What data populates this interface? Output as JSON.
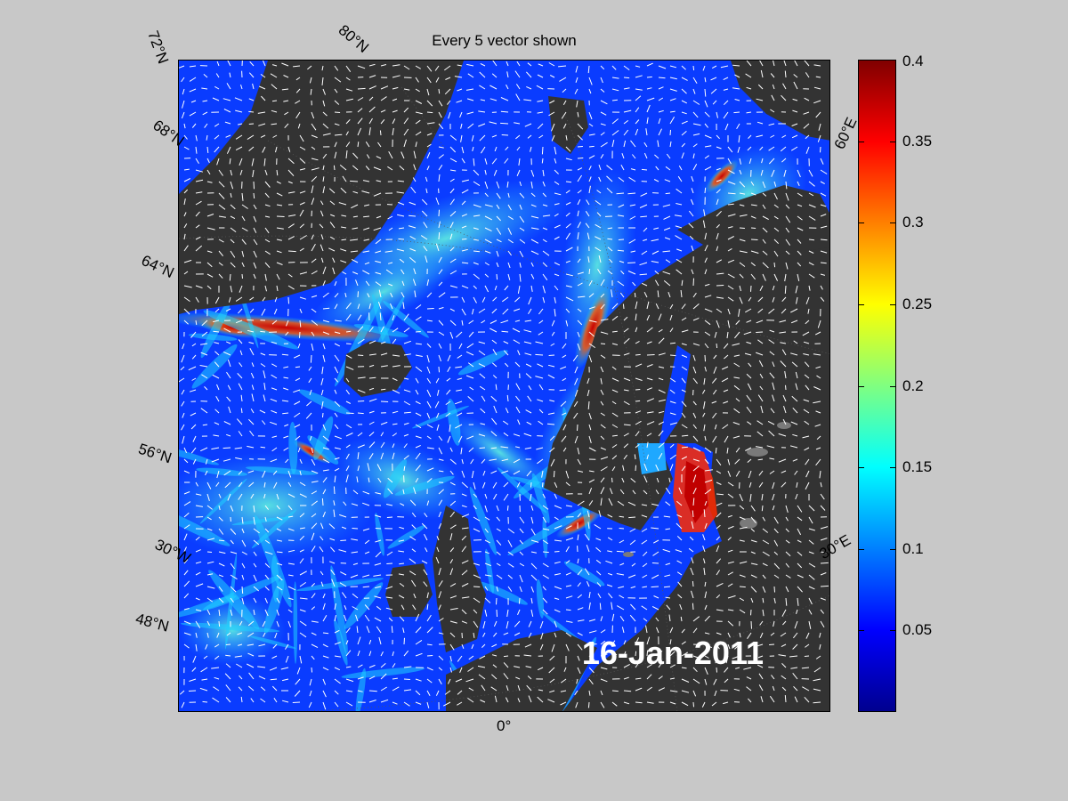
{
  "figure": {
    "title": "Every 5 vector shown",
    "date": "16-Jan-2011"
  },
  "map": {
    "lat_labels": [
      "72°N",
      "68°N",
      "64°N",
      "56°N",
      "30°W",
      "48°N"
    ],
    "lon_labels": [
      "80°N",
      "60°E",
      "30°E",
      "0°"
    ]
  },
  "colorbar": {
    "ticks": [
      "0.4",
      "0.35",
      "0.3",
      "0.25",
      "0.2",
      "0.15",
      "0.1",
      "0.05"
    ],
    "range": [
      0,
      0.4
    ],
    "colormap": "jet"
  },
  "colors": {
    "background": "#c8c8c8",
    "land": "#333333",
    "ice": "#7a7a7a",
    "ocean_low": "#0a3cff",
    "ocean_mid": "#1fa8ff",
    "ocean_high": "#ff2a00",
    "vectors": "#ffffff"
  }
}
